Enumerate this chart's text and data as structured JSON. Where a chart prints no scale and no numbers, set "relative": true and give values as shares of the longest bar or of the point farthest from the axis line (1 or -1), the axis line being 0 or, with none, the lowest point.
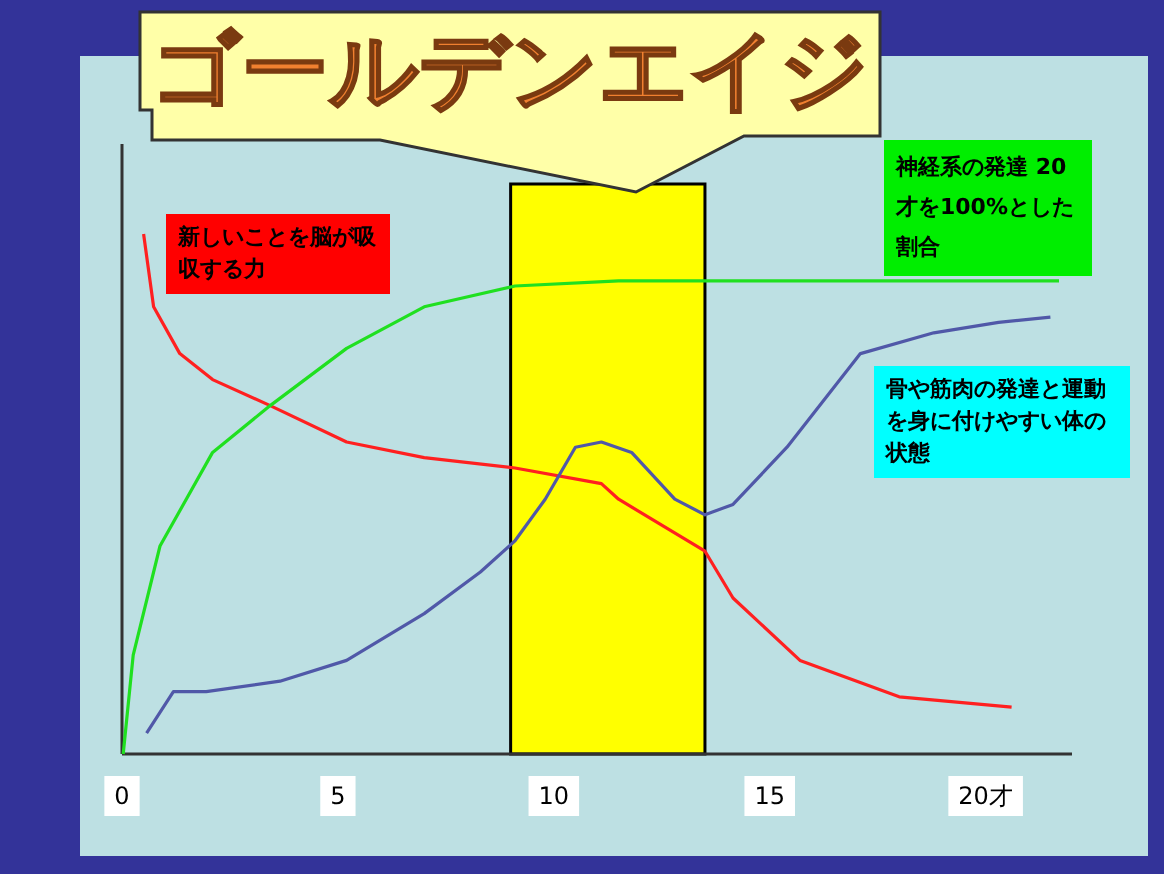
{
  "chart_data": {
    "type": "line",
    "title": "ゴールデンエイジ",
    "relative": true,
    "xlim": [
      0,
      22
    ],
    "xticks": [
      0,
      5,
      10,
      15,
      {
        "value": 20,
        "label": "20才"
      }
    ],
    "tick_labels": "x",
    "grid": false,
    "marker": "none",
    "line_style": "solid",
    "bands": [
      {
        "axis": "x",
        "from": 9,
        "to": 13.5,
        "color": "#ffff00"
      }
    ],
    "series": [
      {
        "name": "新しいことを脳が吸収する力",
        "color": "#ff2020",
        "x": [
          0.5,
          0.73,
          1.34,
          2.1,
          3.43,
          5.2,
          7.0,
          9.1,
          11.1,
          11.5,
          13.5,
          14.15,
          15.7,
          18.0,
          20.6
        ],
        "values": [
          1.0,
          0.86,
          0.77,
          0.72,
          0.67,
          0.6,
          0.57,
          0.55,
          0.52,
          0.49,
          0.39,
          0.3,
          0.18,
          0.11,
          0.09
        ]
      },
      {
        "name": "神経系の発達 20才を100%とした割合",
        "color": "#20e020",
        "x": [
          0.03,
          0.26,
          0.88,
          2.1,
          3.43,
          5.2,
          7.0,
          9.1,
          11.5,
          21.7
        ],
        "values": [
          0,
          0.19,
          0.4,
          0.58,
          0.67,
          0.78,
          0.86,
          0.9,
          0.91,
          0.91
        ]
      },
      {
        "name": "骨や筋肉の発達と運動を身に付けやすい体の状態",
        "color": "#5058a8",
        "x": [
          0.57,
          1.19,
          1.95,
          3.66,
          5.2,
          7.0,
          8.3,
          9.1,
          9.8,
          10.5,
          11.1,
          11.8,
          12.8,
          13.5,
          14.15,
          15.4,
          17.1,
          18.8,
          20.3,
          21.5
        ],
        "values": [
          0.04,
          0.12,
          0.12,
          0.14,
          0.18,
          0.27,
          0.35,
          0.41,
          0.49,
          0.59,
          0.6,
          0.58,
          0.49,
          0.46,
          0.48,
          0.59,
          0.77,
          0.81,
          0.83,
          0.84
        ]
      }
    ]
  }
}
